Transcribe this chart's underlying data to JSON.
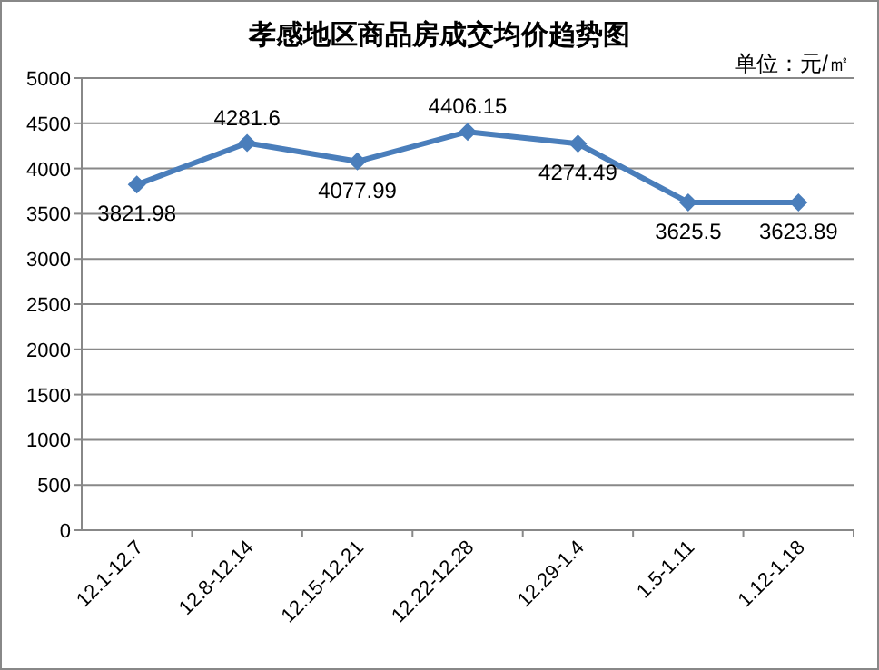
{
  "chart_data": {
    "type": "line",
    "title": "孝感地区商品房成交均价趋势图",
    "annotations": [
      "单位：元/㎡"
    ],
    "categories": [
      "12.1-12.7",
      "12.8-12.14",
      "12.15-12.21",
      "12.22-12.28",
      "12.29-1.4",
      "1.5-1.11",
      "1.12-1.18"
    ],
    "series": [
      {
        "color": "#4a7ebb",
        "values": [
          3821.98,
          4281.6,
          4077.99,
          4406.15,
          4274.49,
          3625.5,
          3623.89
        ]
      }
    ],
    "ylim": [
      0,
      5000
    ],
    "yticks": [
      0,
      500,
      1000,
      1500,
      2000,
      2500,
      3000,
      3500,
      4000,
      4500,
      5000
    ],
    "grid": "y",
    "marker": "diamond",
    "line_style": "solid",
    "data_labels": true
  }
}
